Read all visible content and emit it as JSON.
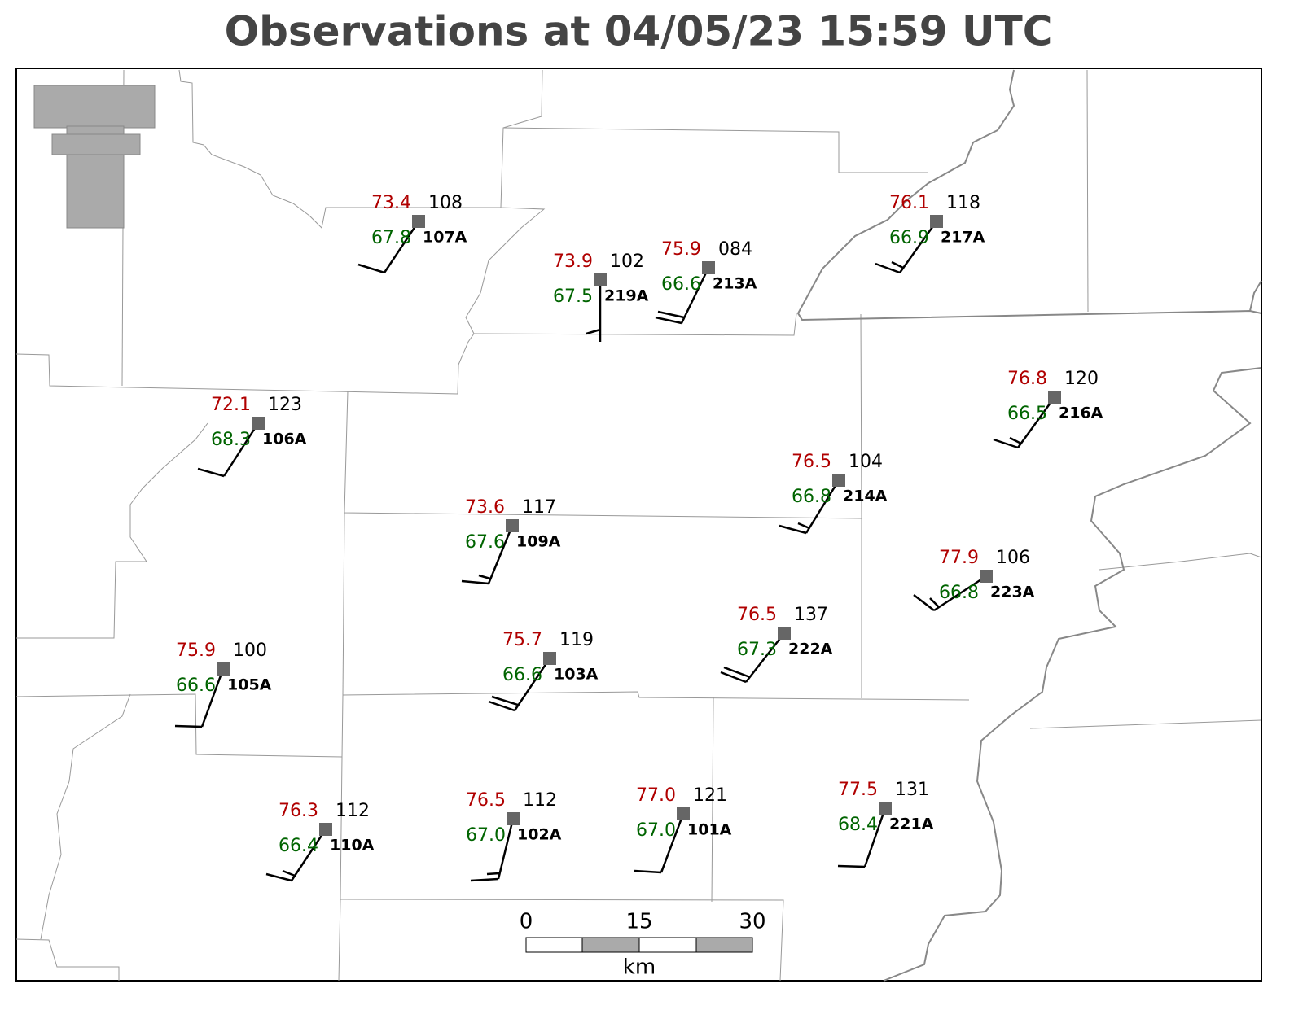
{
  "title": "Observations at 04/05/23 15:59 UTC",
  "stations": [
    {
      "temperature": "73.4",
      "dewpoint": "67.8",
      "pressure": "108",
      "id": "107A"
    },
    {
      "temperature": "73.9",
      "dewpoint": "67.5",
      "pressure": "102",
      "id": "219A"
    },
    {
      "temperature": "75.9",
      "dewpoint": "66.6",
      "pressure": "084",
      "id": "213A"
    },
    {
      "temperature": "76.1",
      "dewpoint": "66.9",
      "pressure": "118",
      "id": "217A"
    },
    {
      "temperature": "76.8",
      "dewpoint": "66.5",
      "pressure": "120",
      "id": "216A"
    },
    {
      "temperature": "72.1",
      "dewpoint": "68.3",
      "pressure": "123",
      "id": "106A"
    },
    {
      "temperature": "76.5",
      "dewpoint": "66.8",
      "pressure": "104",
      "id": "214A"
    },
    {
      "temperature": "73.6",
      "dewpoint": "67.6",
      "pressure": "117",
      "id": "109A"
    },
    {
      "temperature": "77.9",
      "dewpoint": "66.8",
      "pressure": "106",
      "id": "223A"
    },
    {
      "temperature": "75.7",
      "dewpoint": "66.6",
      "pressure": "119",
      "id": "103A"
    },
    {
      "temperature": "76.5",
      "dewpoint": "67.3",
      "pressure": "137",
      "id": "222A"
    },
    {
      "temperature": "75.9",
      "dewpoint": "66.6",
      "pressure": "100",
      "id": "105A"
    },
    {
      "temperature": "76.3",
      "dewpoint": "66.4",
      "pressure": "112",
      "id": "110A"
    },
    {
      "temperature": "76.5",
      "dewpoint": "67.0",
      "pressure": "112",
      "id": "102A"
    },
    {
      "temperature": "77.0",
      "dewpoint": "67.0",
      "pressure": "121",
      "id": "101A"
    },
    {
      "temperature": "77.5",
      "dewpoint": "68.4",
      "pressure": "131",
      "id": "221A"
    }
  ],
  "scale_bar": {
    "labels": [
      "0",
      "15",
      "30"
    ],
    "unit": "km"
  }
}
